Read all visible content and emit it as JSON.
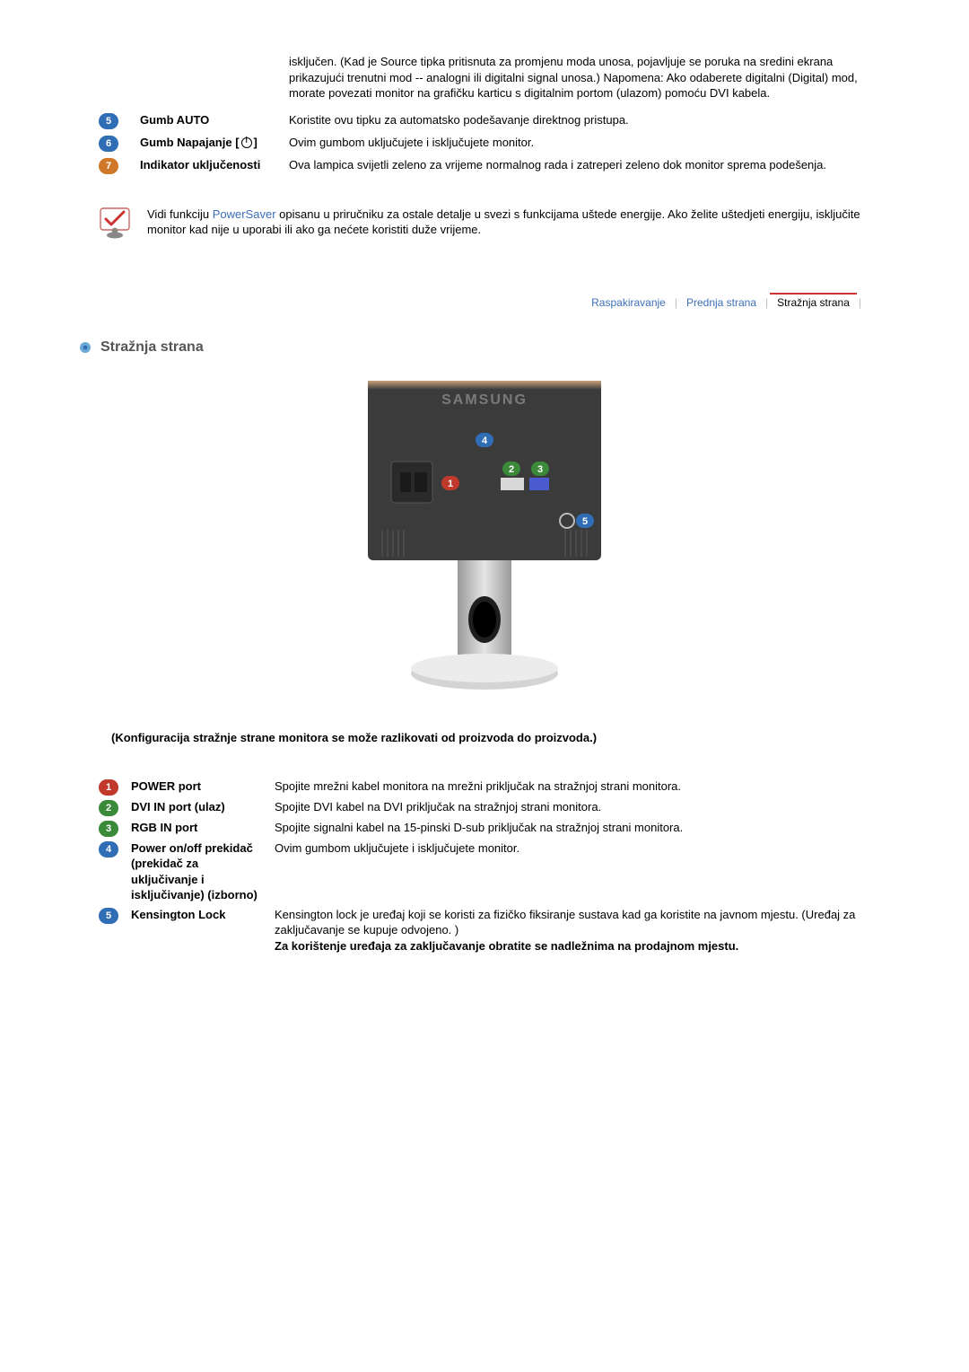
{
  "front": {
    "overflow_text": "isključen. (Kad je Source tipka pritisnuta za promjenu moda unosa, pojavljuje se poruka na sredini ekrana prikazujući trenutni mod -- analogni ili digitalni signal unosa.) Napomena: Ako odaberete digitalni (Digital) mod, morate povezati monitor na grafičku karticu s digitalnim portom (ulazom) pomoću DVI kabela.",
    "items": [
      {
        "num": "5",
        "color": "blue",
        "label": "Gumb AUTO",
        "desc": "Koristite ovu tipku za automatsko podešavanje direktnog pristupa."
      },
      {
        "num": "6",
        "color": "blue",
        "label": "Gumb Napajanje [⏻]",
        "desc": "Ovim gumbom uključujete i isključujete monitor."
      },
      {
        "num": "7",
        "color": "orange",
        "label": "Indikator uključenosti",
        "desc": "Ova lampica svijetli zeleno za vrijeme normalnog rada i zatreperi zeleno dok monitor sprema podešenja."
      }
    ]
  },
  "note": {
    "pre": "Vidi funkciju ",
    "link": "PowerSaver",
    "post": " opisanu u priručniku za ostale detalje u svezi s funkcijama uštede energije. Ako želite uštedjeti energiju, isključite monitor kad nije u uporabi ili ako ga nećete koristiti duže vrijeme."
  },
  "tabs": {
    "items": [
      "Raspakiravanje",
      "Prednja strana",
      "Stražnja strana"
    ],
    "active_index": 2
  },
  "section_title": "Stražnja strana",
  "config_note": "(Konfiguracija stražnje strane monitora se može razlikovati od proizvoda do proizvoda.)",
  "back": {
    "items": [
      {
        "num": "1",
        "color": "red",
        "label": "POWER port",
        "desc": "Spojite mrežni kabel monitora na mrežni priključak na stražnjoj strani monitora."
      },
      {
        "num": "2",
        "color": "green",
        "label": "DVI IN port (ulaz)",
        "desc": "Spojite DVI kabel na DVI priključak na stražnjoj strani monitora."
      },
      {
        "num": "3",
        "color": "green",
        "label": "RGB IN port",
        "desc": "Spojite signalni kabel na 15-pinski D-sub priključak na stražnjoj strani monitora."
      },
      {
        "num": "4",
        "color": "blue",
        "label": "Power on/off prekidač (prekidač za uključivanje i isključivanje) (izborno)",
        "desc": "Ovim gumbom uključujete i isključujete monitor."
      },
      {
        "num": "5",
        "color": "blue",
        "label": "Kensington Lock",
        "desc": "Kensington lock je uređaj koji se koristi za fizičko fiksiranje sustava kad ga koristite na javnom mjestu. (Uređaj za zaključavanje se kupuje odvojeno. )"
      }
    ],
    "extra_bold": "Za korištenje uređaja za zaključavanje obratite se nadležnima na prodajnom mjestu."
  },
  "monitor_callouts": {
    "labels": [
      "1",
      "2",
      "3",
      "4",
      "5"
    ],
    "colors": {
      "1": "#c0392b",
      "2": "#3a8a3a",
      "3": "#3a8a3a",
      "4": "#2f6db5",
      "5": "#2f6db5"
    }
  }
}
